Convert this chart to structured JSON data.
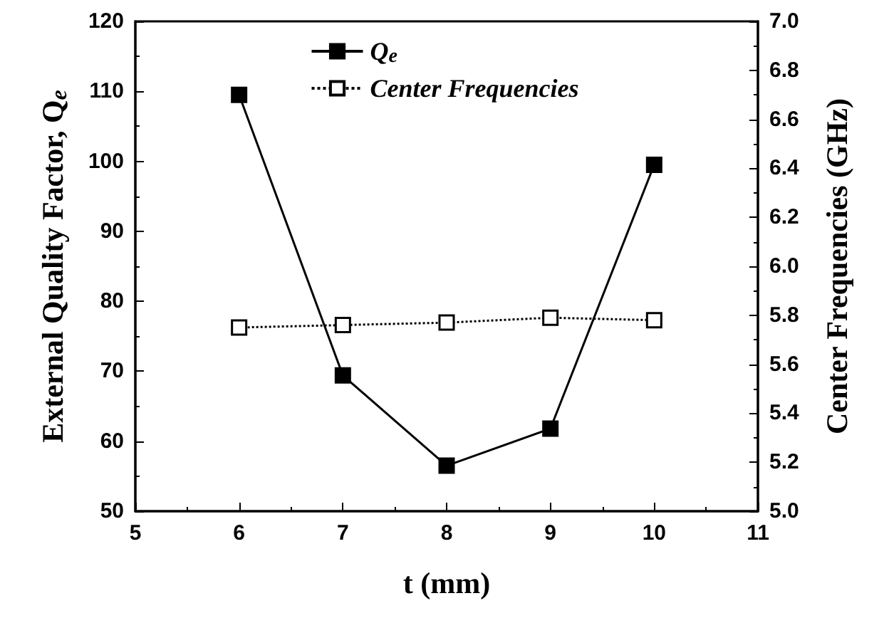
{
  "chart_data": {
    "type": "line",
    "xlabel": "t (mm)",
    "ylabel": "External Quality Factor, Q$_{e}$",
    "y2label": "Center Frequencies (GHz)",
    "x": [
      6,
      7,
      8,
      9,
      10
    ],
    "series": [
      {
        "name": "Q$_{e}$",
        "color": "#000000",
        "values": [
          109.5,
          69.4,
          56.5,
          61.8,
          99.5
        ],
        "line_style": "solid"
      },
      {
        "name": "Center Frequencies",
        "color": "#000000",
        "values": [
          5.75,
          5.76,
          5.77,
          5.79,
          5.78
        ],
        "axis": "y2",
        "line_style": "dotted"
      }
    ],
    "xlim": [
      5,
      11
    ],
    "xticks": [
      5,
      6,
      7,
      8,
      9,
      10,
      11
    ],
    "ylim": [
      50,
      120
    ],
    "yticks": [
      50,
      60,
      70,
      80,
      90,
      100,
      110,
      120
    ],
    "y2lim": [
      5.0,
      7.0
    ],
    "y2ticks": [
      {
        "value": 5.0,
        "label": "5.0"
      },
      {
        "value": 5.2,
        "label": "5.2"
      },
      {
        "value": 5.4,
        "label": "5.4"
      },
      {
        "value": 5.6,
        "label": "5.6"
      },
      {
        "value": 5.8,
        "label": "5.8"
      },
      {
        "value": 6.0,
        "label": "6.0"
      },
      {
        "value": 6.2,
        "label": "6.2"
      },
      {
        "value": 6.4,
        "label": "6.4"
      },
      {
        "value": 6.6,
        "label": "6.6"
      },
      {
        "value": 6.8,
        "label": "6.8"
      },
      {
        "value": 7.0,
        "label": "7.0"
      }
    ],
    "grid": false,
    "legend": "top",
    "marker": "square"
  }
}
